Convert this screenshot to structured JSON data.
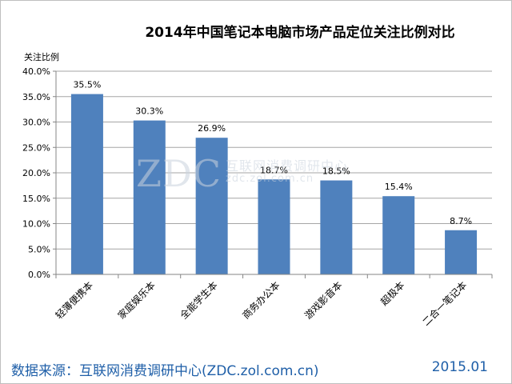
{
  "chart_data": {
    "type": "bar",
    "title": "2014年中国笔记本电脑市场产品定位关注比例对比",
    "ylabel": "关注比例",
    "xlabel": "",
    "categories": [
      "轻薄便携本",
      "家庭娱乐本",
      "全能学生本",
      "商务办公本",
      "游戏影音本",
      "超极本",
      "二合一笔记本"
    ],
    "values": [
      35.5,
      30.3,
      26.9,
      18.7,
      18.5,
      15.4,
      8.7
    ],
    "data_labels": [
      "35.5%",
      "30.3%",
      "26.9%",
      "18.7%",
      "18.5%",
      "15.4%",
      "8.7%"
    ],
    "ylim": [
      0,
      40
    ],
    "yticks": [
      "0.0%",
      "5.0%",
      "10.0%",
      "15.0%",
      "20.0%",
      "25.0%",
      "30.0%",
      "35.0%",
      "40.0%"
    ],
    "grid": true,
    "bar_color": "#4f81bd"
  },
  "watermark": {
    "brand": "ZDC",
    "cn": "互联网消费调研中心",
    "url": "zdc.zol.com.cn"
  },
  "footer": {
    "source": "数据来源：互联网消费调研中心(ZDC.zol.com.cn)",
    "date": "2015.01"
  }
}
